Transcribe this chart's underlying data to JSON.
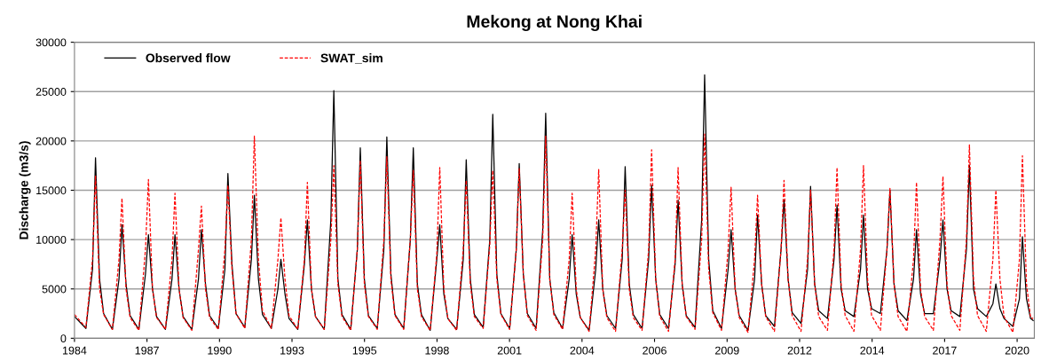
{
  "chart_data": {
    "type": "line",
    "title": "Mekong at Nong Khai",
    "ylabel": "Discharge (m3/s)",
    "x": [
      "1984-11-08",
      "1985-04-15",
      "1985-07-15",
      "1985-08-25",
      "1985-10-20",
      "1985-12-15",
      "1986-04-15",
      "1986-07-15",
      "1986-08-25",
      "1986-10-20",
      "1986-12-15",
      "1987-04-15",
      "1987-07-15",
      "1987-08-25",
      "1987-10-20",
      "1987-12-15",
      "1988-04-15",
      "1988-07-15",
      "1988-08-25",
      "1988-10-20",
      "1988-12-15",
      "1989-04-15",
      "1989-07-15",
      "1989-08-25",
      "1989-10-20",
      "1989-12-15",
      "1990-04-15",
      "1990-07-15",
      "1990-08-25",
      "1990-10-20",
      "1990-12-15",
      "1991-04-15",
      "1991-07-15",
      "1991-08-25",
      "1991-10-20",
      "1991-12-15",
      "1992-04-15",
      "1992-07-15",
      "1992-08-25",
      "1992-10-20",
      "1992-12-15",
      "1993-04-15",
      "1993-07-15",
      "1993-08-25",
      "1993-10-20",
      "1993-12-15",
      "1994-04-15",
      "1994-07-15",
      "1994-08-25",
      "1994-10-20",
      "1994-12-15",
      "1995-04-15",
      "1995-07-15",
      "1995-08-25",
      "1995-10-20",
      "1995-12-15",
      "1996-04-15",
      "1996-07-15",
      "1996-08-25",
      "1996-10-20",
      "1996-12-15",
      "1997-04-15",
      "1997-07-15",
      "1997-08-25",
      "1997-10-20",
      "1997-12-15",
      "1998-04-15",
      "1998-07-15",
      "1998-08-25",
      "1998-10-20",
      "1998-12-15",
      "1999-04-15",
      "1999-07-15",
      "1999-08-25",
      "1999-10-20",
      "1999-12-15",
      "2000-04-15",
      "2000-07-15",
      "2000-08-25",
      "2000-10-20",
      "2000-12-15",
      "2001-04-15",
      "2001-07-15",
      "2001-08-25",
      "2001-10-20",
      "2001-12-15",
      "2002-04-15",
      "2002-07-15",
      "2002-08-25",
      "2002-10-20",
      "2002-12-15",
      "2003-04-15",
      "2003-07-15",
      "2003-08-25",
      "2003-10-20",
      "2003-12-15",
      "2004-04-15",
      "2004-07-15",
      "2004-08-25",
      "2004-10-20",
      "2004-12-15",
      "2005-04-15",
      "2005-07-15",
      "2005-08-25",
      "2005-10-20",
      "2005-12-15",
      "2006-04-15",
      "2006-07-15",
      "2006-08-25",
      "2006-10-20",
      "2006-12-15",
      "2007-04-15",
      "2007-07-15",
      "2007-08-25",
      "2007-10-20",
      "2007-12-15",
      "2008-04-15",
      "2008-07-15",
      "2008-08-25",
      "2008-10-20",
      "2008-12-15",
      "2009-04-15",
      "2009-07-15",
      "2009-08-25",
      "2009-10-20",
      "2009-12-15",
      "2010-04-15",
      "2010-07-15",
      "2010-08-25",
      "2010-10-20",
      "2010-12-15",
      "2011-04-15",
      "2011-07-15",
      "2011-08-25",
      "2011-10-20",
      "2011-12-15",
      "2012-04-15",
      "2012-07-15",
      "2012-08-25",
      "2012-10-20",
      "2012-12-15",
      "2013-04-15",
      "2013-07-15",
      "2013-08-25",
      "2013-10-20",
      "2013-12-15",
      "2014-04-15",
      "2014-07-15",
      "2014-08-25",
      "2014-10-20",
      "2014-12-15",
      "2015-04-15",
      "2015-07-15",
      "2015-08-25",
      "2015-10-20",
      "2015-12-15",
      "2016-04-15",
      "2016-07-15",
      "2016-08-25",
      "2016-10-20",
      "2016-12-15",
      "2017-04-15",
      "2017-07-15",
      "2017-08-25",
      "2017-10-20",
      "2017-12-15",
      "2018-04-15",
      "2018-07-15",
      "2018-08-25",
      "2018-10-20",
      "2018-12-15",
      "2019-04-15",
      "2019-07-15",
      "2019-08-25",
      "2019-10-20",
      "2019-12-15",
      "2020-04-15",
      "2020-07-15",
      "2020-08-25",
      "2020-10-20",
      "2020-12-15",
      "2021-01-20"
    ],
    "series": [
      {
        "name": "Observed flow",
        "color": "#000000",
        "line_style": "solid",
        "values": [
          2200,
          1000,
          7000,
          18300,
          6000,
          2500,
          900,
          6000,
          11500,
          5500,
          2300,
          900,
          6500,
          10500,
          5000,
          2200,
          900,
          6000,
          10500,
          5000,
          2200,
          900,
          6000,
          11000,
          5500,
          2300,
          1000,
          7000,
          16700,
          7500,
          2500,
          1100,
          8000,
          14500,
          6000,
          2400,
          1000,
          5000,
          8000,
          4500,
          2000,
          900,
          7500,
          12000,
          5000,
          2200,
          900,
          12000,
          25100,
          6000,
          2400,
          900,
          9000,
          19300,
          6000,
          2300,
          1000,
          9000,
          20400,
          6500,
          2400,
          1000,
          10000,
          19300,
          5500,
          2400,
          800,
          8000,
          11500,
          4500,
          2000,
          900,
          8000,
          18100,
          6000,
          2400,
          1100,
          10000,
          22700,
          6500,
          2500,
          1000,
          9000,
          17700,
          6500,
          2500,
          1000,
          11000,
          22800,
          6000,
          2600,
          1000,
          6000,
          10500,
          4500,
          2100,
          800,
          7000,
          12000,
          5000,
          2300,
          1000,
          8000,
          17400,
          5500,
          2400,
          1000,
          8000,
          15500,
          6000,
          2400,
          1000,
          7500,
          14000,
          5500,
          2300,
          1100,
          12000,
          26700,
          8000,
          2800,
          1000,
          7000,
          11000,
          5000,
          2300,
          800,
          6000,
          12500,
          5500,
          2300,
          1200,
          9000,
          14000,
          6000,
          2600,
          1500,
          7000,
          15400,
          5500,
          2800,
          2000,
          8000,
          13500,
          5000,
          2800,
          2200,
          7000,
          12500,
          5000,
          3000,
          2500,
          9000,
          15000,
          5500,
          2800,
          1800,
          6000,
          11000,
          4500,
          2500,
          2500,
          8000,
          12000,
          5000,
          2800,
          2200,
          9000,
          17500,
          5000,
          3000,
          2200,
          3500,
          5500,
          3000,
          2000,
          1200,
          4000,
          10300,
          4000,
          2000,
          1800
        ]
      },
      {
        "name": "SWAT_sim",
        "color": "#ff0000",
        "line_style": "dashed",
        "values": [
          2400,
          1100,
          8000,
          16500,
          5000,
          2400,
          900,
          8000,
          14200,
          5000,
          2100,
          800,
          9000,
          16100,
          5000,
          2100,
          900,
          8000,
          14700,
          5000,
          2100,
          800,
          9000,
          13400,
          5000,
          2100,
          900,
          9000,
          15500,
          7000,
          2500,
          1000,
          10000,
          20500,
          8000,
          2800,
          1000,
          8000,
          12200,
          6000,
          2300,
          900,
          8000,
          15800,
          5000,
          2200,
          900,
          10000,
          17500,
          5500,
          2200,
          800,
          9000,
          18000,
          5500,
          2200,
          900,
          10000,
          18400,
          6000,
          2300,
          900,
          10000,
          17000,
          5000,
          2200,
          800,
          8500,
          17300,
          5000,
          2000,
          800,
          9000,
          16000,
          5500,
          2200,
          1000,
          9500,
          17000,
          6000,
          2400,
          900,
          9000,
          17200,
          6500,
          2300,
          800,
          10000,
          20500,
          6000,
          2400,
          900,
          8000,
          14700,
          5000,
          2100,
          700,
          9000,
          17100,
          5000,
          2100,
          700,
          9000,
          15000,
          5000,
          2100,
          800,
          9000,
          19100,
          6000,
          2200,
          700,
          8000,
          17300,
          5500,
          2200,
          900,
          10000,
          20700,
          7000,
          2600,
          800,
          9000,
          15300,
          5000,
          2100,
          600,
          8000,
          14500,
          5500,
          2200,
          700,
          9000,
          16000,
          6000,
          2300,
          700,
          8000,
          15000,
          5500,
          2200,
          800,
          9000,
          17300,
          5500,
          2300,
          700,
          9000,
          17500,
          6000,
          2300,
          800,
          9000,
          15200,
          5500,
          2200,
          700,
          8000,
          15800,
          5000,
          2200,
          800,
          10000,
          16400,
          5500,
          2300,
          800,
          10000,
          19600,
          6000,
          2300,
          700,
          8000,
          15000,
          6000,
          2200,
          600,
          8000,
          18500,
          5500,
          2100,
          2000
        ]
      }
    ],
    "xlim": [
      "1984-11-08",
      "2021-02-05"
    ],
    "xticks": [
      {
        "value": "1984-11-08",
        "label": "1984"
      },
      {
        "value": "1987-08-05",
        "label": "1987"
      },
      {
        "value": "1990-05-01",
        "label": "1990"
      },
      {
        "value": "1993-01-25",
        "label": "1993"
      },
      {
        "value": "1995-10-22",
        "label": "1995"
      },
      {
        "value": "1998-07-18",
        "label": "1998"
      },
      {
        "value": "2001-04-13",
        "label": "2001"
      },
      {
        "value": "2004-01-08",
        "label": "2004"
      },
      {
        "value": "2006-10-04",
        "label": "2006"
      },
      {
        "value": "2009-07-01",
        "label": "2009"
      },
      {
        "value": "2012-03-27",
        "label": "2012"
      },
      {
        "value": "2014-12-22",
        "label": "2014"
      },
      {
        "value": "2017-09-17",
        "label": "2017"
      },
      {
        "value": "2020-06-13",
        "label": "2020"
      }
    ],
    "ylim": [
      0,
      30000
    ],
    "yticks": [
      0,
      5000,
      10000,
      15000,
      20000,
      25000,
      30000
    ],
    "grid": "y",
    "legend": "top left"
  }
}
